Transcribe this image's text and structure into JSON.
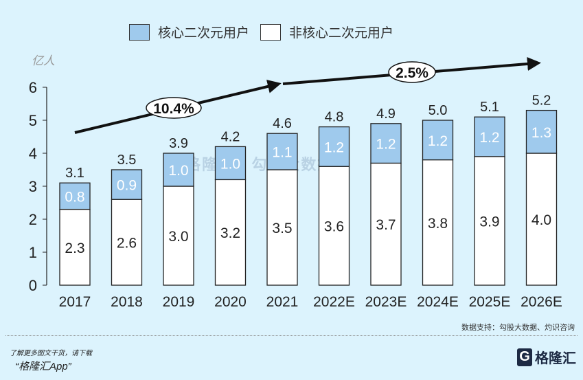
{
  "chart_data": {
    "type": "bar",
    "stacked": true,
    "categories": [
      "2017",
      "2018",
      "2019",
      "2020",
      "2021",
      "2022E",
      "2023E",
      "2024E",
      "2025E",
      "2026E"
    ],
    "series": [
      {
        "name": "非核心二次元用户",
        "values": [
          2.3,
          2.6,
          3.0,
          3.2,
          3.5,
          3.6,
          3.7,
          3.8,
          3.9,
          4.0
        ],
        "color": "#ffffff"
      },
      {
        "name": "核心二次元用户",
        "values": [
          0.8,
          0.9,
          1.0,
          1.0,
          1.1,
          1.2,
          1.2,
          1.2,
          1.2,
          1.3
        ],
        "color": "#9fcaed"
      }
    ],
    "totals": [
      3.1,
      3.5,
      3.9,
      4.2,
      4.6,
      4.8,
      4.9,
      5.0,
      5.1,
      5.2
    ],
    "ylabel": "亿人",
    "ylim": [
      0,
      6
    ],
    "yticks": [
      0,
      1,
      2,
      3,
      4,
      5,
      6
    ],
    "legend": "top",
    "grid": false,
    "annotations": [
      {
        "text": "10.4%",
        "from": "2017",
        "to": "2021"
      },
      {
        "text": "2.5%",
        "from": "2021",
        "to": "2026E"
      }
    ]
  },
  "source": "数据支持：勾股大数据、灼识咨询",
  "watermark": "格隆汇 | 勾股大数据",
  "promo_line1": "了解更多图文干货，请下载",
  "promo_line2": "“格隆汇App”",
  "logo_text": "格隆汇",
  "logo_letter": "G"
}
